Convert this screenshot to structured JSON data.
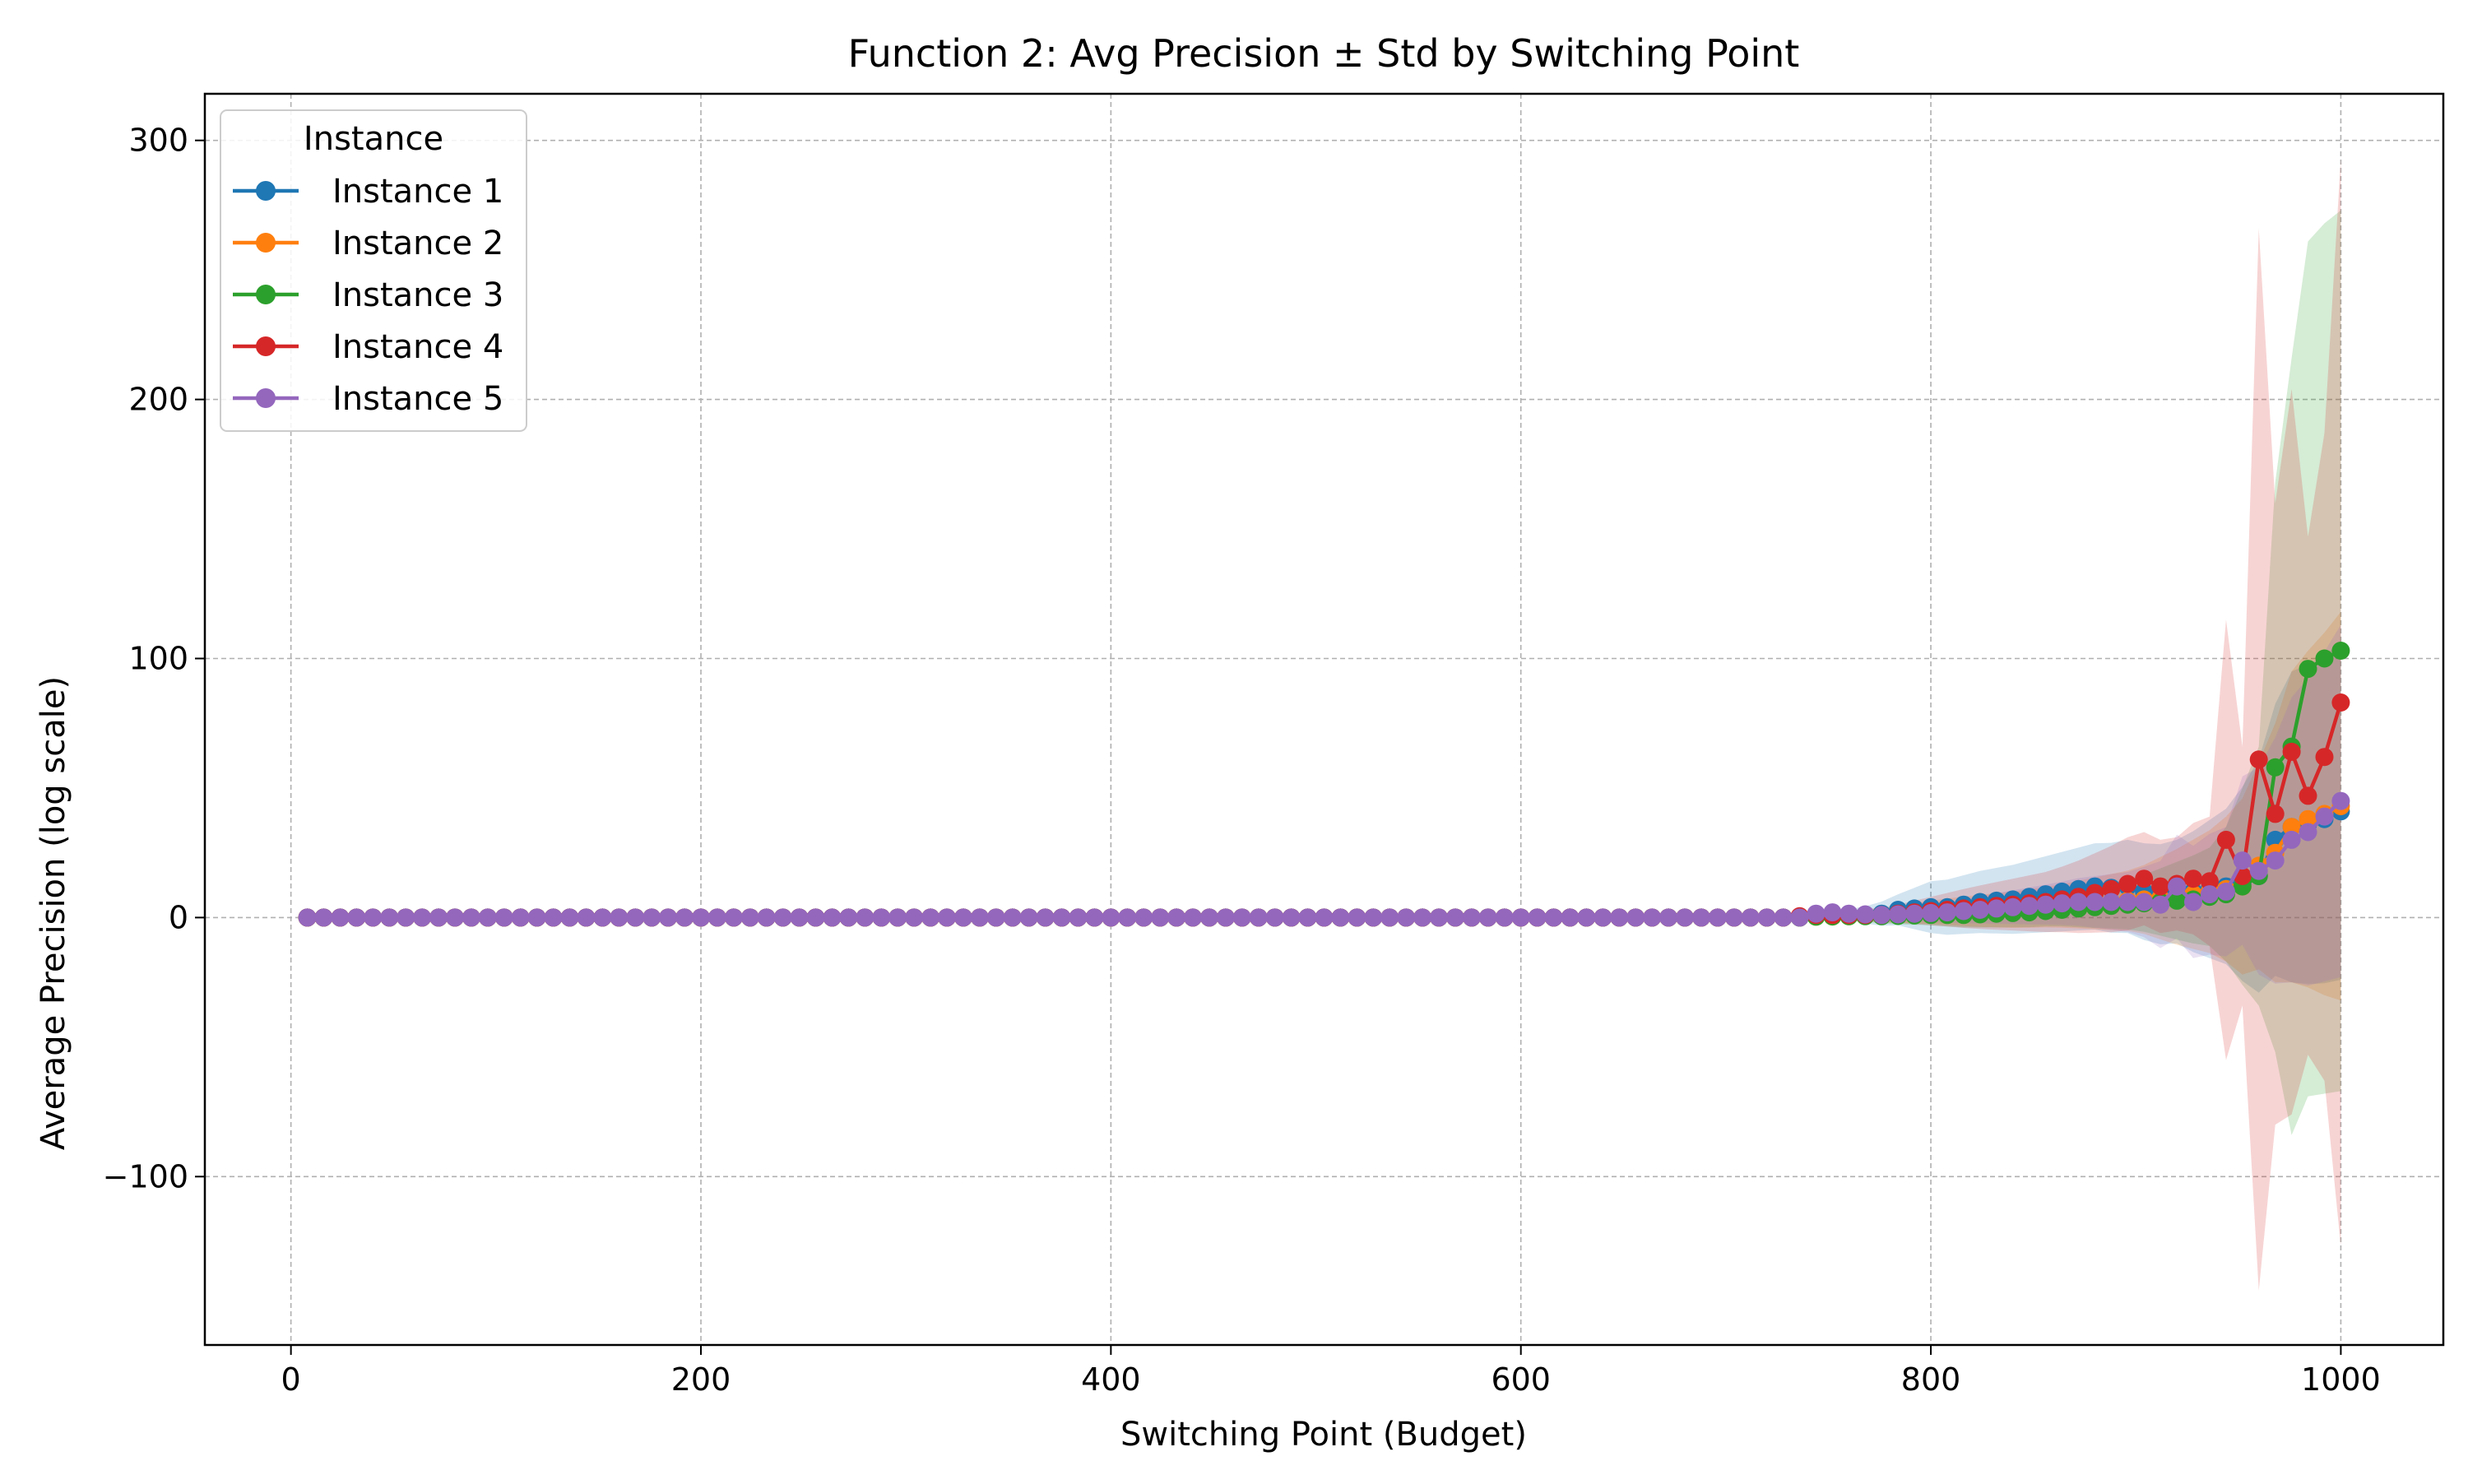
{
  "chart_data": {
    "type": "line",
    "title": "Function 2: Avg Precision ± Std by Switching Point",
    "xlabel": "Switching Point (Budget)",
    "ylabel": "Average Precision (log scale)",
    "xlim": [
      -42,
      1050
    ],
    "ylim": [
      -165,
      318
    ],
    "xticks": [
      0,
      200,
      400,
      600,
      800,
      1000
    ],
    "xtick_labels": [
      "0",
      "200",
      "400",
      "600",
      "800",
      "1000"
    ],
    "yticks": [
      -100,
      0,
      100,
      200,
      300
    ],
    "ytick_labels": [
      "−100",
      "0",
      "100",
      "200",
      "300"
    ],
    "grid": true,
    "legend_title": "Instance",
    "legend_position": "top-left",
    "x_start": 8,
    "x_step": 8,
    "series": [
      {
        "name": "Instance 1",
        "color": "#1f77b4",
        "mean": [
          [
            740,
            0.5
          ],
          [
            752,
            1.5
          ],
          [
            760,
            1.2
          ],
          [
            768,
            1.0
          ],
          [
            776,
            1.5
          ],
          [
            784,
            3.0
          ],
          [
            792,
            3.5
          ],
          [
            800,
            4.0
          ],
          [
            808,
            4.0
          ],
          [
            816,
            5.0
          ],
          [
            824,
            6.0
          ],
          [
            832,
            6.5
          ],
          [
            840,
            7.0
          ],
          [
            848,
            8.0
          ],
          [
            856,
            9.0
          ],
          [
            864,
            10.0
          ],
          [
            872,
            11.0
          ],
          [
            880,
            12.0
          ],
          [
            888,
            11.5
          ],
          [
            896,
            12.0
          ],
          [
            904,
            10.0
          ],
          [
            912,
            9.0
          ],
          [
            920,
            10.0
          ],
          [
            928,
            10.0
          ],
          [
            936,
            11.0
          ],
          [
            944,
            12.0
          ],
          [
            952,
            13.0
          ],
          [
            960,
            16.0
          ],
          [
            968,
            30.0
          ],
          [
            976,
            35.0
          ],
          [
            984,
            36.0
          ],
          [
            992,
            38.0
          ],
          [
            1000,
            41.0
          ]
        ],
        "std": [
          [
            740,
            0.5
          ],
          [
            760,
            2.0
          ],
          [
            784,
            6.0
          ],
          [
            800,
            10.0
          ],
          [
            824,
            12.0
          ],
          [
            848,
            14.0
          ],
          [
            872,
            16.0
          ],
          [
            896,
            18.0
          ],
          [
            920,
            20.0
          ],
          [
            944,
            30.0
          ],
          [
            960,
            45.0
          ],
          [
            976,
            60.0
          ],
          [
            1000,
            65.0
          ]
        ]
      },
      {
        "name": "Instance 2",
        "color": "#ff7f0e",
        "mean": [
          [
            740,
            0.3
          ],
          [
            760,
            0.5
          ],
          [
            780,
            1.0
          ],
          [
            800,
            2.0
          ],
          [
            820,
            2.5
          ],
          [
            840,
            3.0
          ],
          [
            856,
            4.0
          ],
          [
            872,
            5.0
          ],
          [
            888,
            6.0
          ],
          [
            904,
            7.0
          ],
          [
            920,
            8.0
          ],
          [
            936,
            10.0
          ],
          [
            952,
            12.0
          ],
          [
            960,
            20.0
          ],
          [
            968,
            25.0
          ],
          [
            976,
            35.0
          ],
          [
            984,
            38.0
          ],
          [
            992,
            40.0
          ],
          [
            1000,
            43.0
          ]
        ],
        "std": [
          [
            740,
            0.5
          ],
          [
            780,
            3.0
          ],
          [
            820,
            6.0
          ],
          [
            860,
            8.0
          ],
          [
            900,
            12.0
          ],
          [
            940,
            25.0
          ],
          [
            960,
            40.0
          ],
          [
            976,
            60.0
          ],
          [
            1000,
            75.0
          ]
        ]
      },
      {
        "name": "Instance 3",
        "color": "#2ca02c",
        "mean": [
          [
            740,
            0.3
          ],
          [
            760,
            0.5
          ],
          [
            780,
            0.5
          ],
          [
            800,
            1.0
          ],
          [
            816,
            1.0
          ],
          [
            832,
            1.5
          ],
          [
            848,
            2.0
          ],
          [
            864,
            3.0
          ],
          [
            880,
            4.0
          ],
          [
            896,
            5.0
          ],
          [
            912,
            6.0
          ],
          [
            928,
            7.0
          ],
          [
            944,
            9.0
          ],
          [
            952,
            12.0
          ],
          [
            960,
            16.0
          ],
          [
            968,
            58.0
          ],
          [
            976,
            66.0
          ],
          [
            984,
            96.0
          ],
          [
            992,
            100.0
          ],
          [
            1000,
            103.0
          ]
        ],
        "std": [
          [
            740,
            0.5
          ],
          [
            780,
            3.0
          ],
          [
            820,
            5.0
          ],
          [
            860,
            6.0
          ],
          [
            900,
            10.0
          ],
          [
            940,
            20.0
          ],
          [
            960,
            50.0
          ],
          [
            968,
            110.0
          ],
          [
            976,
            150.0
          ],
          [
            984,
            165.0
          ],
          [
            992,
            168.0
          ],
          [
            1000,
            170.0
          ]
        ]
      },
      {
        "name": "Instance 4",
        "color": "#d62728",
        "mean": [
          [
            736,
            0.5
          ],
          [
            744,
            1.0
          ],
          [
            752,
            1.0
          ],
          [
            760,
            1.0
          ],
          [
            776,
            1.0
          ],
          [
            792,
            2.0
          ],
          [
            808,
            3.0
          ],
          [
            824,
            4.0
          ],
          [
            840,
            5.0
          ],
          [
            856,
            6.0
          ],
          [
            872,
            8.0
          ],
          [
            888,
            11.0
          ],
          [
            896,
            13.0
          ],
          [
            904,
            15.0
          ],
          [
            912,
            12.0
          ],
          [
            920,
            13.0
          ],
          [
            928,
            15.0
          ],
          [
            936,
            14.0
          ],
          [
            944,
            30.0
          ],
          [
            952,
            16.0
          ],
          [
            960,
            61.0
          ],
          [
            968,
            40.0
          ],
          [
            976,
            64.0
          ],
          [
            984,
            47.0
          ],
          [
            992,
            62.0
          ],
          [
            1000,
            83.0
          ]
        ],
        "std": [
          [
            736,
            0.5
          ],
          [
            780,
            3.0
          ],
          [
            820,
            8.0
          ],
          [
            860,
            12.0
          ],
          [
            896,
            18.0
          ],
          [
            920,
            18.0
          ],
          [
            936,
            25.0
          ],
          [
            944,
            85.0
          ],
          [
            952,
            50.0
          ],
          [
            960,
            205.0
          ],
          [
            968,
            120.0
          ],
          [
            976,
            140.0
          ],
          [
            984,
            100.0
          ],
          [
            992,
            125.0
          ],
          [
            1000,
            210.0
          ]
        ]
      },
      {
        "name": "Instance 5",
        "color": "#9467bd",
        "mean": [
          [
            740,
            0.5
          ],
          [
            744,
            1.5
          ],
          [
            752,
            2.0
          ],
          [
            760,
            1.5
          ],
          [
            776,
            1.0
          ],
          [
            792,
            1.5
          ],
          [
            808,
            2.0
          ],
          [
            824,
            3.0
          ],
          [
            840,
            4.0
          ],
          [
            856,
            5.0
          ],
          [
            872,
            6.0
          ],
          [
            888,
            6.0
          ],
          [
            904,
            6.0
          ],
          [
            912,
            5.0
          ],
          [
            920,
            12.0
          ],
          [
            928,
            6.0
          ],
          [
            936,
            9.0
          ],
          [
            944,
            10.0
          ],
          [
            952,
            22.0
          ],
          [
            960,
            18.0
          ],
          [
            968,
            22.0
          ],
          [
            976,
            30.0
          ],
          [
            984,
            33.0
          ],
          [
            992,
            39.0
          ],
          [
            1000,
            45.0
          ]
        ],
        "std": [
          [
            740,
            0.5
          ],
          [
            780,
            2.0
          ],
          [
            820,
            5.0
          ],
          [
            860,
            8.0
          ],
          [
            900,
            12.0
          ],
          [
            920,
            20.0
          ],
          [
            944,
            25.0
          ],
          [
            960,
            40.0
          ],
          [
            976,
            55.0
          ],
          [
            1000,
            68.0
          ]
        ]
      }
    ]
  }
}
